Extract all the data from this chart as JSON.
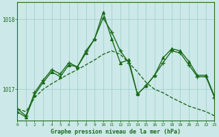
{
  "title": "Graphe pression niveau de la mer (hPa)",
  "bg_color": "#cce8e8",
  "grid_color": "#99cccc",
  "line_color": "#1a6b1a",
  "x_min": 0,
  "x_max": 23,
  "y_min": 1016.55,
  "y_max": 1018.25,
  "yticks": [
    1017,
    1018
  ],
  "series": [
    {
      "x": [
        0,
        1,
        2,
        3,
        4,
        5,
        6,
        7,
        8,
        9,
        10,
        11,
        12,
        13,
        14,
        15,
        16,
        17,
        18,
        19,
        20,
        21,
        22,
        23
      ],
      "y": [
        1016.72,
        1016.68,
        1016.88,
        1017.0,
        1017.08,
        1017.15,
        1017.22,
        1017.28,
        1017.35,
        1017.42,
        1017.5,
        1017.55,
        1017.5,
        1017.38,
        1017.25,
        1017.1,
        1017.0,
        1016.95,
        1016.88,
        1016.82,
        1016.76,
        1016.72,
        1016.68,
        1016.62
      ],
      "linestyle": "--",
      "marker": null,
      "linewidth": 1.0
    },
    {
      "x": [
        0,
        1,
        2,
        3,
        4,
        5,
        6,
        7,
        8,
        9,
        10,
        11,
        12,
        13,
        14,
        15,
        16,
        17,
        18,
        19,
        20,
        21,
        22,
        23
      ],
      "y": [
        1016.72,
        1016.62,
        1016.95,
        1017.13,
        1017.28,
        1017.22,
        1017.38,
        1017.32,
        1017.55,
        1017.72,
        1018.02,
        1017.82,
        1017.55,
        1017.38,
        1016.93,
        1017.05,
        1017.2,
        1017.38,
        1017.55,
        1017.52,
        1017.35,
        1017.18,
        1017.18,
        1016.88
      ],
      "linestyle": "-",
      "marker": "+",
      "linewidth": 1.0
    },
    {
      "x": [
        0,
        1,
        2,
        3,
        4,
        5,
        6,
        7,
        8,
        9,
        10,
        11,
        12,
        13,
        14,
        15,
        16,
        17,
        18,
        19,
        20,
        21,
        22,
        23
      ],
      "y": [
        1016.68,
        1016.6,
        1016.92,
        1017.1,
        1017.25,
        1017.18,
        1017.35,
        1017.32,
        1017.52,
        1017.72,
        1018.1,
        1017.72,
        1017.38,
        1017.42,
        1016.93,
        1017.05,
        1017.2,
        1017.45,
        1017.58,
        1017.55,
        1017.4,
        1017.2,
        1017.2,
        1016.9
      ],
      "linestyle": "-",
      "marker": "^",
      "linewidth": 1.0
    }
  ]
}
